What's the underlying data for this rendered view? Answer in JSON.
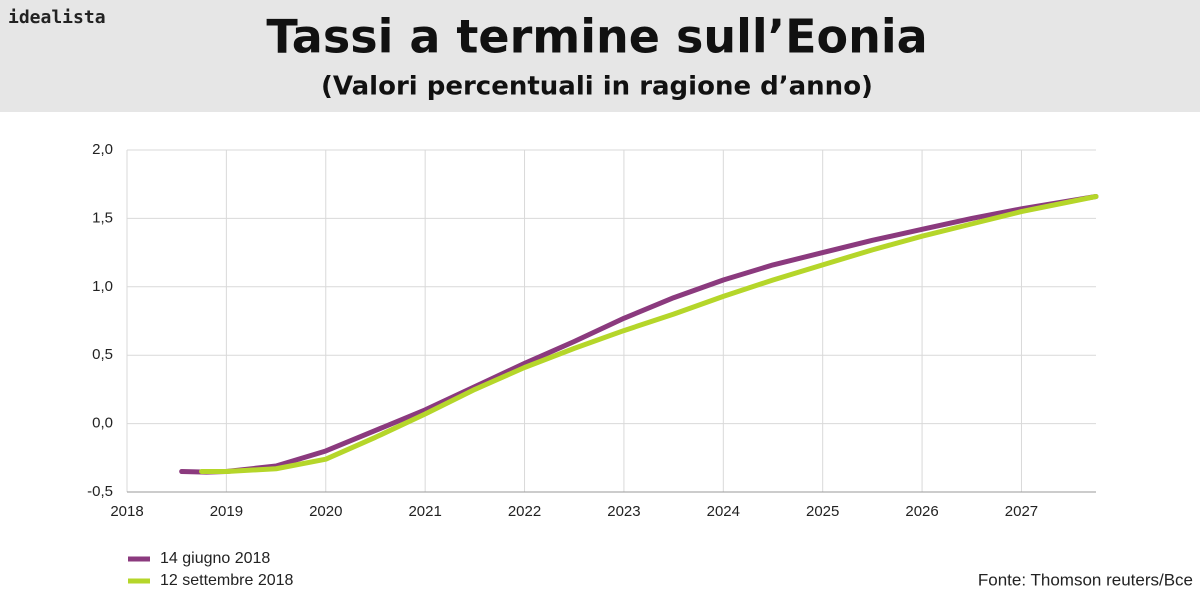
{
  "chart_data": {
    "type": "line",
    "brand": "idealista",
    "title": "Tassi a termine sull’Eonia",
    "subtitle": "(Valori percentuali in ragione d’anno)",
    "source": "Fonte: Thomson reuters/Bce",
    "xlim": [
      2018,
      2027.75
    ],
    "xticks": [
      2018,
      2019,
      2020,
      2021,
      2022,
      2023,
      2024,
      2025,
      2026,
      2027
    ],
    "ylim": [
      -0.5,
      2.0
    ],
    "yticks": [
      {
        "value": -0.5,
        "label": "-0,5"
      },
      {
        "value": 0,
        "label": "0,0"
      },
      {
        "value": 0.5,
        "label": "0,5"
      },
      {
        "value": 1.0,
        "label": "1,0"
      },
      {
        "value": 1.5,
        "label": "1,5"
      },
      {
        "value": 2.0,
        "label": "2,0"
      }
    ],
    "grid": true,
    "legend": "bottom-left",
    "series": [
      {
        "name": "14 giugno 2018",
        "color": "#8b3a7e",
        "x": [
          2018.55,
          2018.8,
          2019.0,
          2019.5,
          2020.0,
          2020.5,
          2021.0,
          2021.5,
          2022.0,
          2022.5,
          2023.0,
          2023.5,
          2024.0,
          2024.5,
          2025.0,
          2025.5,
          2026.0,
          2026.5,
          2027.0,
          2027.75
        ],
        "values": [
          -0.35,
          -0.355,
          -0.35,
          -0.31,
          -0.2,
          -0.05,
          0.1,
          0.27,
          0.44,
          0.6,
          0.77,
          0.92,
          1.05,
          1.16,
          1.25,
          1.34,
          1.42,
          1.5,
          1.57,
          1.66
        ]
      },
      {
        "name": "12 settembre 2018",
        "color": "#b5d62a",
        "x": [
          2018.75,
          2019.0,
          2019.5,
          2020.0,
          2020.5,
          2021.0,
          2021.5,
          2022.0,
          2022.5,
          2023.0,
          2023.5,
          2024.0,
          2024.5,
          2025.0,
          2025.5,
          2026.0,
          2026.5,
          2027.0,
          2027.75
        ],
        "values": [
          -0.35,
          -0.35,
          -0.33,
          -0.26,
          -0.1,
          0.07,
          0.25,
          0.41,
          0.55,
          0.68,
          0.8,
          0.93,
          1.05,
          1.16,
          1.27,
          1.37,
          1.46,
          1.55,
          1.66
        ]
      }
    ]
  }
}
